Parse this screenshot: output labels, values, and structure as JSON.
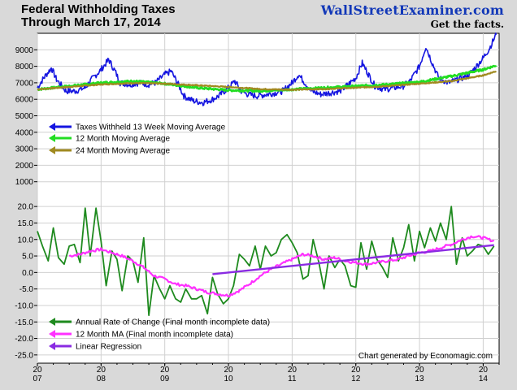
{
  "title": {
    "line1": "Federal Withholding Taxes",
    "line2": "Through March 17, 2014"
  },
  "brand": {
    "name": "WallStreetExaminer.com",
    "tagline": "Get the facts."
  },
  "credit": "Chart generated by Economagic.com",
  "colors": {
    "taxes13w": "#1515e0",
    "ma12": "#22dd22",
    "ma24": "#a08a20",
    "roc": "#1e8a1e",
    "roc_ma12": "#ff30ff",
    "regression": "#8a2be2"
  },
  "chart_data": [
    {
      "type": "line",
      "panel": "upper",
      "ylim": [
        0,
        10000
      ],
      "yticks": [
        "1000",
        "2000",
        "3000",
        "4000",
        "5000",
        "6000",
        "7000",
        "8000",
        "9000"
      ],
      "xlim": [
        2007.0,
        2014.25
      ],
      "x_tick_labels": [
        {
          "line1": "20",
          "line2": "07"
        },
        {
          "line1": "20",
          "line2": "08"
        },
        {
          "line1": "20",
          "line2": "09"
        },
        {
          "line1": "20",
          "line2": "10"
        },
        {
          "line1": "20",
          "line2": "11"
        },
        {
          "line1": "20",
          "line2": "12"
        },
        {
          "line1": "20",
          "line2": "13"
        },
        {
          "line1": "20",
          "line2": "14"
        }
      ],
      "legend_position": "middle-left",
      "series": [
        {
          "name": "Taxes Withheld 13 Week Moving Average",
          "x": [
            2007.0,
            2007.1,
            2007.22,
            2007.3,
            2007.45,
            2007.6,
            2007.75,
            2007.85,
            2008.0,
            2008.12,
            2008.22,
            2008.3,
            2008.45,
            2008.6,
            2008.75,
            2008.85,
            2009.0,
            2009.1,
            2009.2,
            2009.3,
            2009.45,
            2009.6,
            2009.75,
            2009.85,
            2010.0,
            2010.1,
            2010.2,
            2010.3,
            2010.45,
            2010.6,
            2010.75,
            2010.85,
            2011.0,
            2011.1,
            2011.2,
            2011.3,
            2011.45,
            2011.6,
            2011.75,
            2011.85,
            2012.0,
            2012.1,
            2012.2,
            2012.3,
            2012.45,
            2012.6,
            2012.75,
            2012.85,
            2013.0,
            2013.1,
            2013.2,
            2013.3,
            2013.45,
            2013.6,
            2013.75,
            2013.85,
            2014.0,
            2014.1,
            2014.2
          ],
          "values": [
            6700,
            7300,
            7900,
            7200,
            6500,
            6500,
            6700,
            7200,
            7800,
            8400,
            7700,
            7000,
            6900,
            7000,
            6900,
            7000,
            7500,
            7700,
            7000,
            6200,
            5900,
            5800,
            6000,
            6200,
            6700,
            7100,
            6500,
            6300,
            6200,
            6300,
            6400,
            6500,
            7000,
            7500,
            7000,
            6500,
            6300,
            6400,
            6500,
            6800,
            7300,
            8200,
            7500,
            6800,
            6600,
            6700,
            6800,
            7100,
            8000,
            9200,
            8200,
            7300,
            7000,
            7200,
            7400,
            7800,
            8500,
            9100,
            9900
          ]
        },
        {
          "name": "12 Month Moving Average",
          "x": [
            2007.0,
            2007.5,
            2008.0,
            2008.5,
            2009.0,
            2009.5,
            2010.0,
            2010.5,
            2011.0,
            2011.5,
            2012.0,
            2012.5,
            2013.0,
            2013.5,
            2014.0,
            2014.2
          ],
          "values": [
            6600,
            6800,
            7000,
            7100,
            6950,
            6700,
            6550,
            6500,
            6600,
            6700,
            6800,
            6900,
            7050,
            7400,
            7800,
            8050
          ]
        },
        {
          "name": "24 Month Moving Average",
          "x": [
            2007.0,
            2007.5,
            2008.0,
            2008.5,
            2009.0,
            2009.5,
            2010.0,
            2010.5,
            2011.0,
            2011.5,
            2012.0,
            2012.5,
            2013.0,
            2013.5,
            2014.0,
            2014.2
          ],
          "values": [
            6600,
            6750,
            6900,
            6980,
            6950,
            6850,
            6750,
            6620,
            6580,
            6620,
            6700,
            6800,
            6950,
            7100,
            7450,
            7700
          ]
        }
      ]
    },
    {
      "type": "line",
      "panel": "lower",
      "ylim": [
        -27.5,
        22.5
      ],
      "yticks": [
        "20.0",
        "15.0",
        "10.0",
        "5.0",
        "0.0",
        "-5.0",
        "-10.0",
        "-15.0",
        "-20.0",
        "-25.0"
      ],
      "ytick_values": [
        20,
        15,
        10,
        5,
        0,
        -5,
        -10,
        -15,
        -20,
        -25
      ],
      "legend_position": "bottom-left",
      "series": [
        {
          "name": "Annual Rate of Change (Final month incomplete data)",
          "x": [
            2007.0,
            2007.08,
            2007.17,
            2007.25,
            2007.33,
            2007.42,
            2007.5,
            2007.58,
            2007.67,
            2007.75,
            2007.83,
            2007.92,
            2008.0,
            2008.08,
            2008.17,
            2008.25,
            2008.33,
            2008.42,
            2008.5,
            2008.58,
            2008.67,
            2008.75,
            2008.83,
            2008.92,
            2009.0,
            2009.08,
            2009.17,
            2009.25,
            2009.33,
            2009.42,
            2009.5,
            2009.58,
            2009.67,
            2009.75,
            2009.83,
            2009.92,
            2010.0,
            2010.08,
            2010.17,
            2010.25,
            2010.33,
            2010.42,
            2010.5,
            2010.58,
            2010.67,
            2010.75,
            2010.83,
            2010.92,
            2011.0,
            2011.08,
            2011.17,
            2011.25,
            2011.33,
            2011.42,
            2011.5,
            2011.58,
            2011.67,
            2011.75,
            2011.83,
            2011.92,
            2012.0,
            2012.08,
            2012.17,
            2012.25,
            2012.33,
            2012.42,
            2012.5,
            2012.58,
            2012.67,
            2012.75,
            2012.83,
            2012.92,
            2013.0,
            2013.08,
            2013.17,
            2013.25,
            2013.33,
            2013.42,
            2013.5,
            2013.58,
            2013.67,
            2013.75,
            2013.83,
            2013.92,
            2014.0,
            2014.08,
            2014.17
          ],
          "values": [
            12.5,
            8.0,
            3.5,
            13.5,
            4.5,
            2.5,
            8.0,
            8.5,
            3.0,
            19.5,
            5.0,
            19.5,
            9.5,
            -4.0,
            6.5,
            4.0,
            -5.5,
            5.0,
            3.5,
            -3.0,
            10.5,
            -13.0,
            -1.0,
            -5.0,
            -8.0,
            -4.0,
            -8.0,
            -9.0,
            -5.0,
            -8.0,
            -8.0,
            -7.0,
            -12.5,
            -1.5,
            -6.5,
            -9.5,
            -8.0,
            -4.0,
            5.5,
            4.0,
            2.0,
            8.0,
            1.0,
            8.0,
            5.0,
            6.0,
            10.0,
            11.5,
            9.0,
            6.0,
            -2.0,
            -1.0,
            10.0,
            3.0,
            -5.0,
            5.0,
            1.5,
            4.0,
            2.0,
            -4.0,
            -4.5,
            9.0,
            1.0,
            9.5,
            4.0,
            1.5,
            -1.5,
            10.5,
            3.5,
            7.5,
            14.5,
            3.5,
            12.5,
            7.5,
            13.5,
            9.5,
            15.0,
            10.0,
            20.0,
            2.5,
            10.5,
            5.0,
            6.5,
            8.5,
            8.0,
            5.5,
            8.0
          ]
        },
        {
          "name": "12 Month MA (Final month incomplete data)",
          "x": [
            2007.5,
            2007.67,
            2007.83,
            2008.0,
            2008.17,
            2008.33,
            2008.5,
            2008.67,
            2008.83,
            2009.0,
            2009.17,
            2009.33,
            2009.5,
            2009.67,
            2009.83,
            2010.0,
            2010.17,
            2010.33,
            2010.5,
            2010.67,
            2010.83,
            2011.0,
            2011.17,
            2011.33,
            2011.5,
            2011.67,
            2011.83,
            2012.0,
            2012.17,
            2012.33,
            2012.5,
            2012.67,
            2012.83,
            2013.0,
            2013.17,
            2013.33,
            2013.5,
            2013.67,
            2013.83,
            2014.0,
            2014.17
          ],
          "values": [
            5.0,
            5.5,
            6.5,
            7.0,
            6.0,
            5.0,
            3.5,
            1.5,
            -1.0,
            -2.0,
            -3.5,
            -4.0,
            -5.0,
            -6.0,
            -6.5,
            -7.0,
            -5.5,
            -3.5,
            -1.0,
            1.0,
            2.5,
            4.0,
            5.5,
            5.0,
            4.0,
            4.5,
            3.5,
            3.0,
            2.5,
            3.0,
            3.5,
            4.0,
            5.0,
            6.0,
            6.5,
            7.5,
            8.5,
            10.0,
            11.0,
            10.5,
            9.5
          ]
        },
        {
          "name": "Linear Regression",
          "x": [
            2009.75,
            2014.17
          ],
          "values": [
            -0.5,
            8.3
          ]
        }
      ]
    }
  ]
}
